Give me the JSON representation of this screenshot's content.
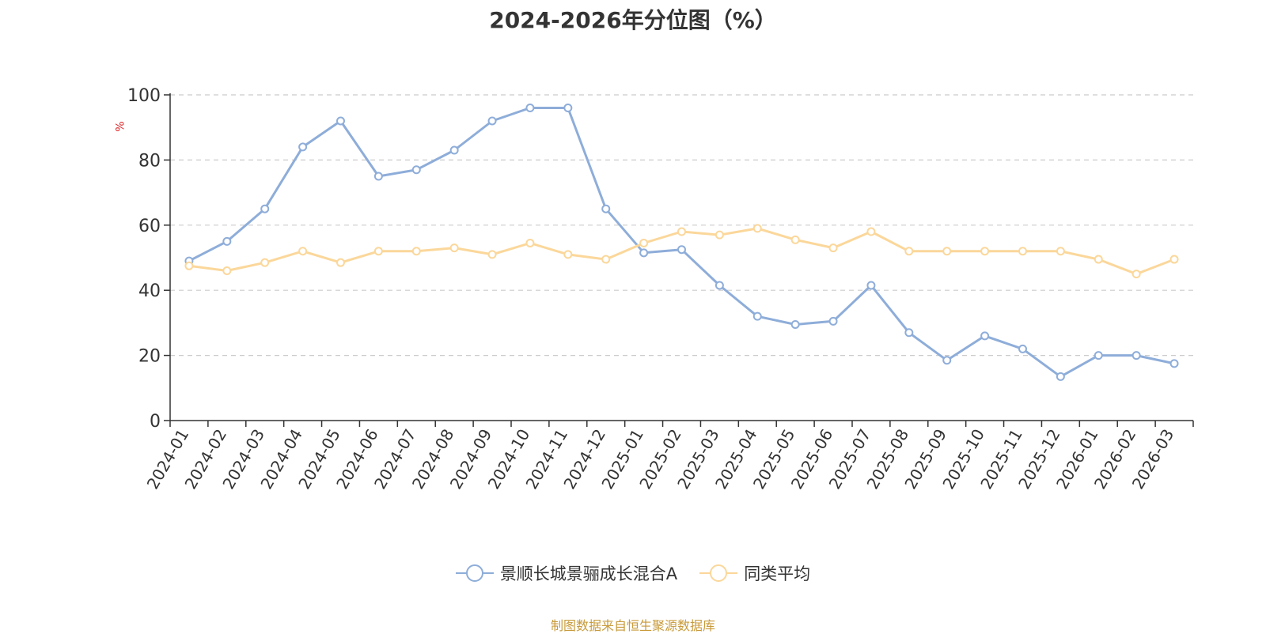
{
  "chart_data": {
    "type": "line",
    "title": "2024-2026年分位图（%）",
    "ylabel": "%",
    "xlabel": "",
    "ylim": [
      0,
      100
    ],
    "yticks": [
      0,
      20,
      40,
      60,
      80,
      100
    ],
    "grid": true,
    "legend_position": "bottom",
    "categories": [
      "2024-01",
      "2024-02",
      "2024-03",
      "2024-04",
      "2024-05",
      "2024-06",
      "2024-07",
      "2024-08",
      "2024-09",
      "2024-10",
      "2024-11",
      "2024-12",
      "2025-01",
      "2025-02",
      "2025-03",
      "2025-04",
      "2025-05",
      "2025-06",
      "2025-07",
      "2025-08",
      "2025-09",
      "2025-10",
      "2025-11",
      "2025-12",
      "2026-01",
      "2026-02",
      "2026-03"
    ],
    "series": [
      {
        "name": "景顺长城景骊成长混合A",
        "color": "#8eadd9",
        "values": [
          49,
          55,
          65,
          84,
          92,
          75,
          77,
          83,
          92,
          96,
          96,
          65,
          51.5,
          52.5,
          41.5,
          32,
          29.5,
          30.5,
          41.5,
          27,
          18.5,
          26,
          22,
          13.5,
          20,
          20,
          17.5
        ]
      },
      {
        "name": "同类平均",
        "color": "#fbd79a",
        "values": [
          47.5,
          46,
          48.5,
          52,
          48.5,
          52,
          52,
          53,
          51,
          54.5,
          51,
          49.5,
          54.5,
          58,
          57,
          59,
          55.5,
          53,
          58,
          52,
          52,
          52,
          52,
          52,
          49.5,
          45,
          49.5
        ]
      }
    ]
  },
  "source_text": "制图数据来自恒生聚源数据库"
}
